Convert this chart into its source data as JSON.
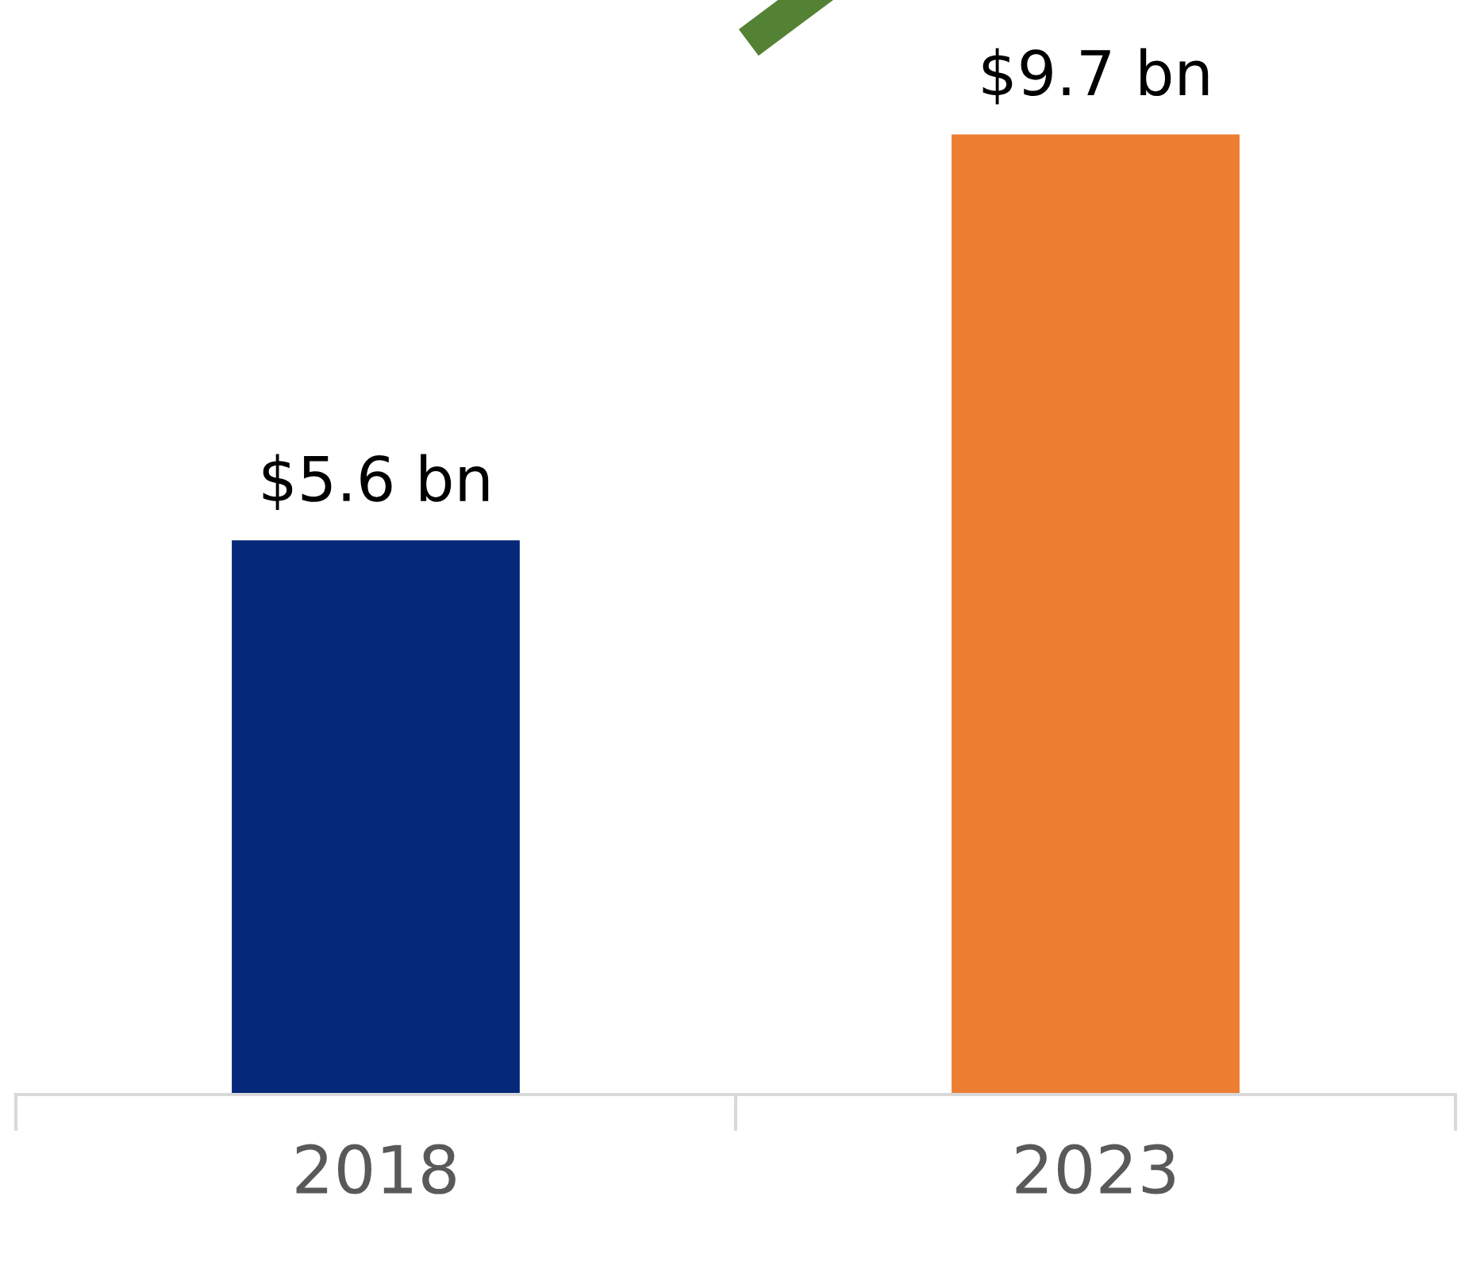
{
  "chart_data": {
    "type": "bar",
    "categories": [
      "2018",
      "2023"
    ],
    "values": [
      5.6,
      9.7
    ],
    "colors": [
      "#06287a",
      "#ed7d31"
    ],
    "value_labels": [
      "$5.6 bn",
      "$9.7 bn"
    ],
    "grid": false,
    "legend": false
  }
}
